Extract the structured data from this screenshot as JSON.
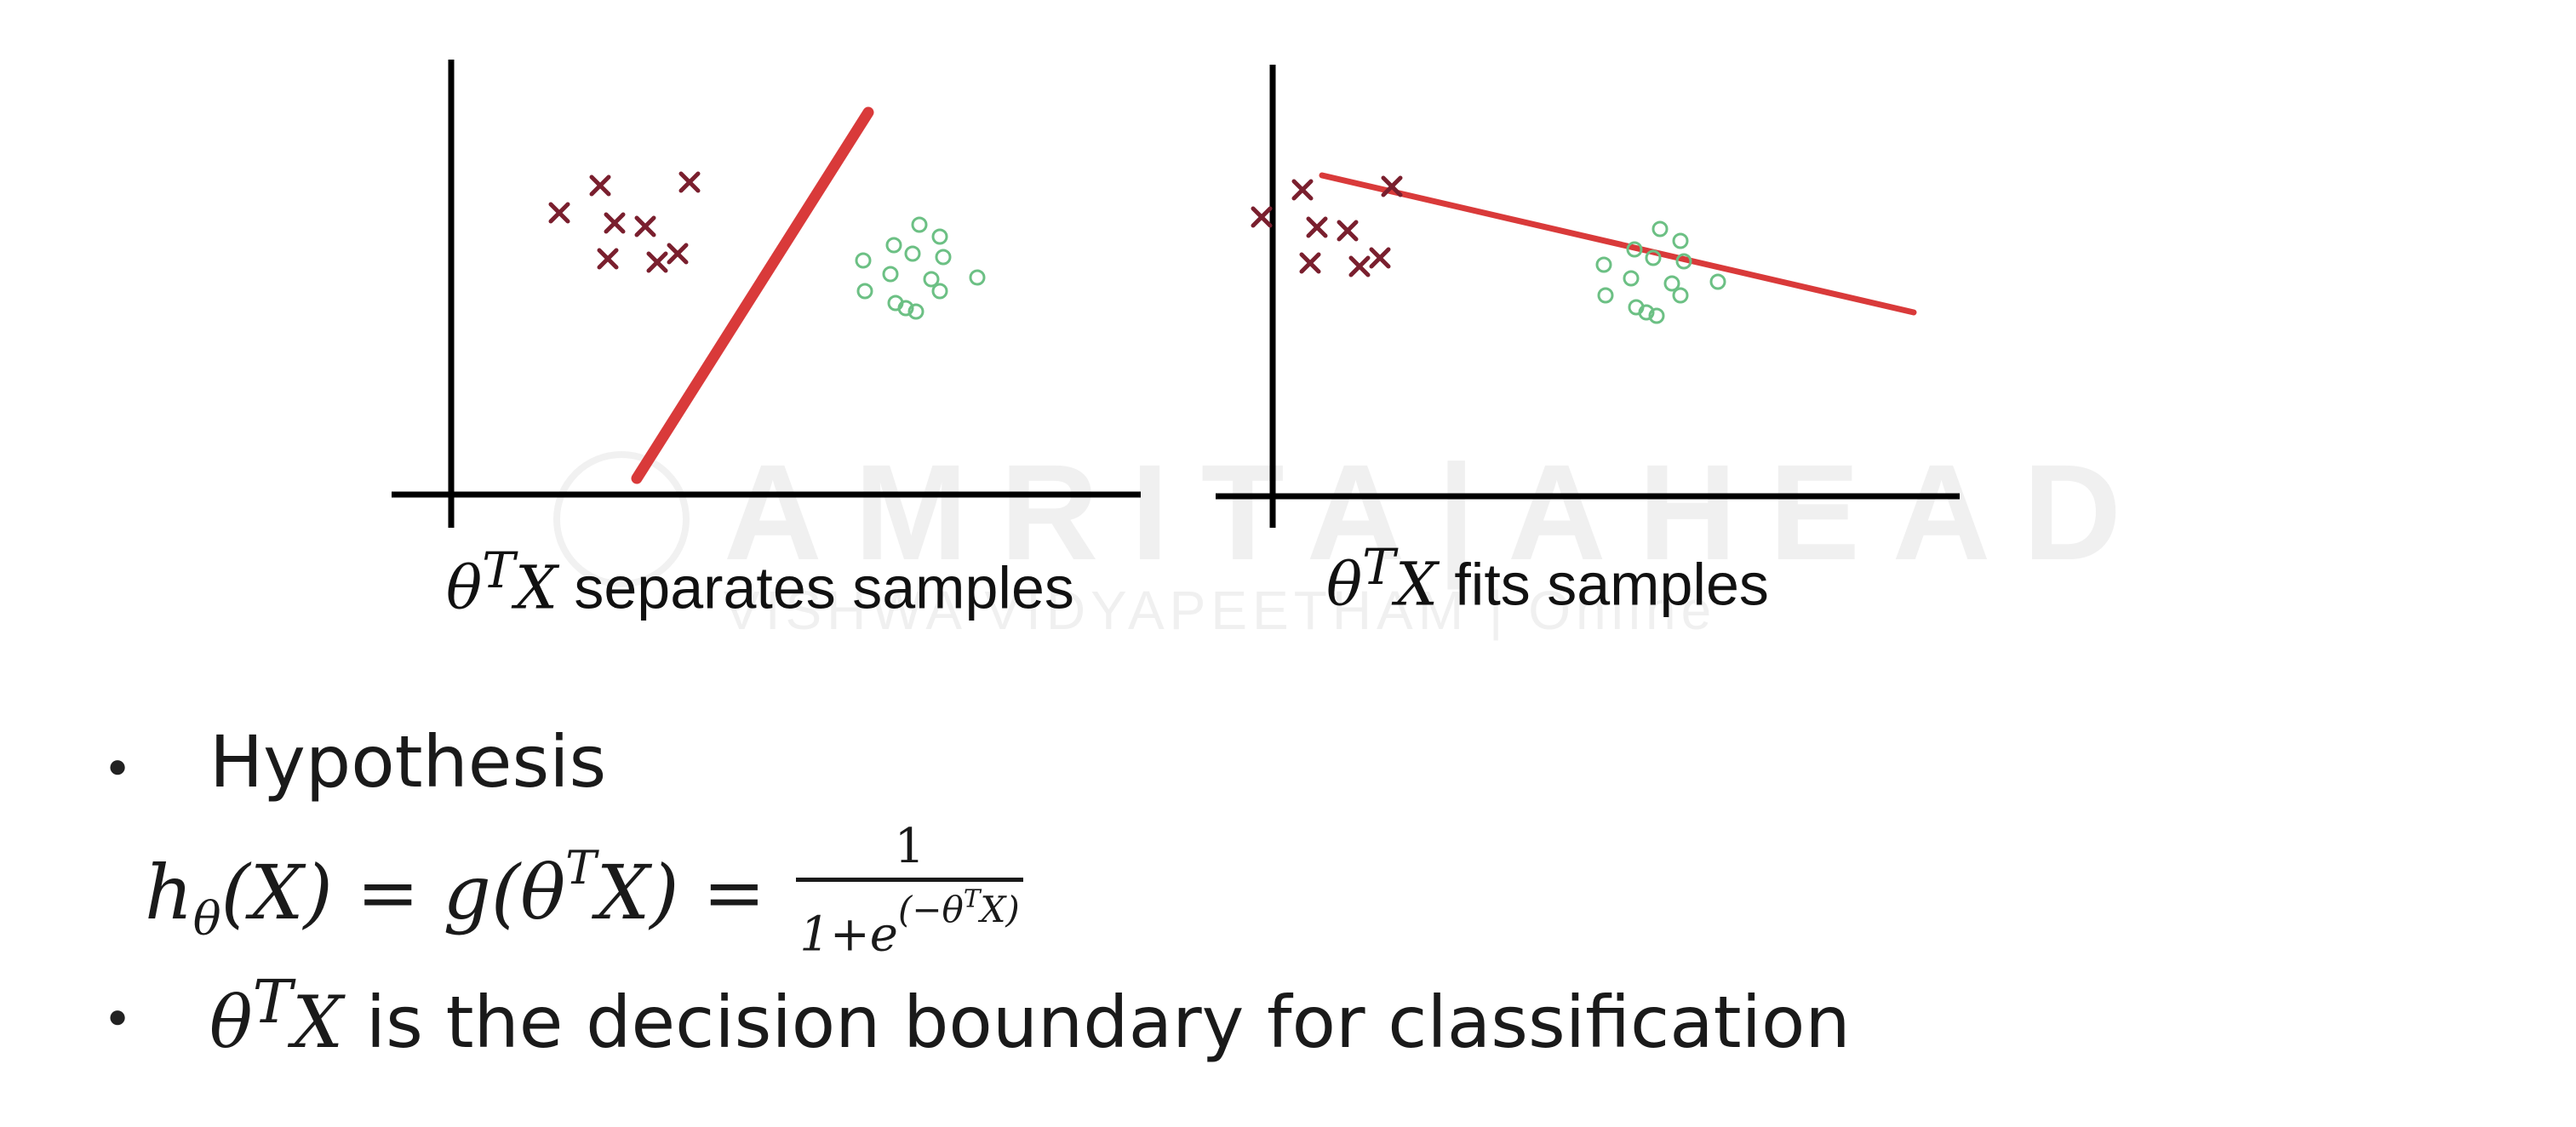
{
  "watermark": {
    "main": "AMRITA|AHEAD",
    "sub": "VISHWA VIDYAPEETHAM | Online"
  },
  "colors": {
    "axis": "#000000",
    "line": "#d93a3a",
    "cross": "#7a1f2e",
    "circle": "#6cc084"
  },
  "plots": [
    {
      "caption_math": "θ",
      "caption_sup": "T",
      "caption_var": "X",
      "caption_text": " separates samples"
    },
    {
      "caption_math": "θ",
      "caption_sup": "T",
      "caption_var": "X",
      "caption_text": " fits samples"
    }
  ],
  "bullets": {
    "hypothesis": "Hypothesis",
    "decision_prefix_math": "θ",
    "decision_prefix_sup": "T",
    "decision_prefix_var": "X",
    "decision_text": " is the decision boundary for classification"
  },
  "formula": {
    "lhs_h": "h",
    "lhs_sub": "θ",
    "lhs_arg": "(X) = g(θ",
    "lhs_sup": "T",
    "lhs_tail": "X) =",
    "numerator": "1",
    "den_base": "1+e",
    "den_exp_open": "(−θ",
    "den_exp_sup": "T",
    "den_exp_close": "X)"
  }
}
